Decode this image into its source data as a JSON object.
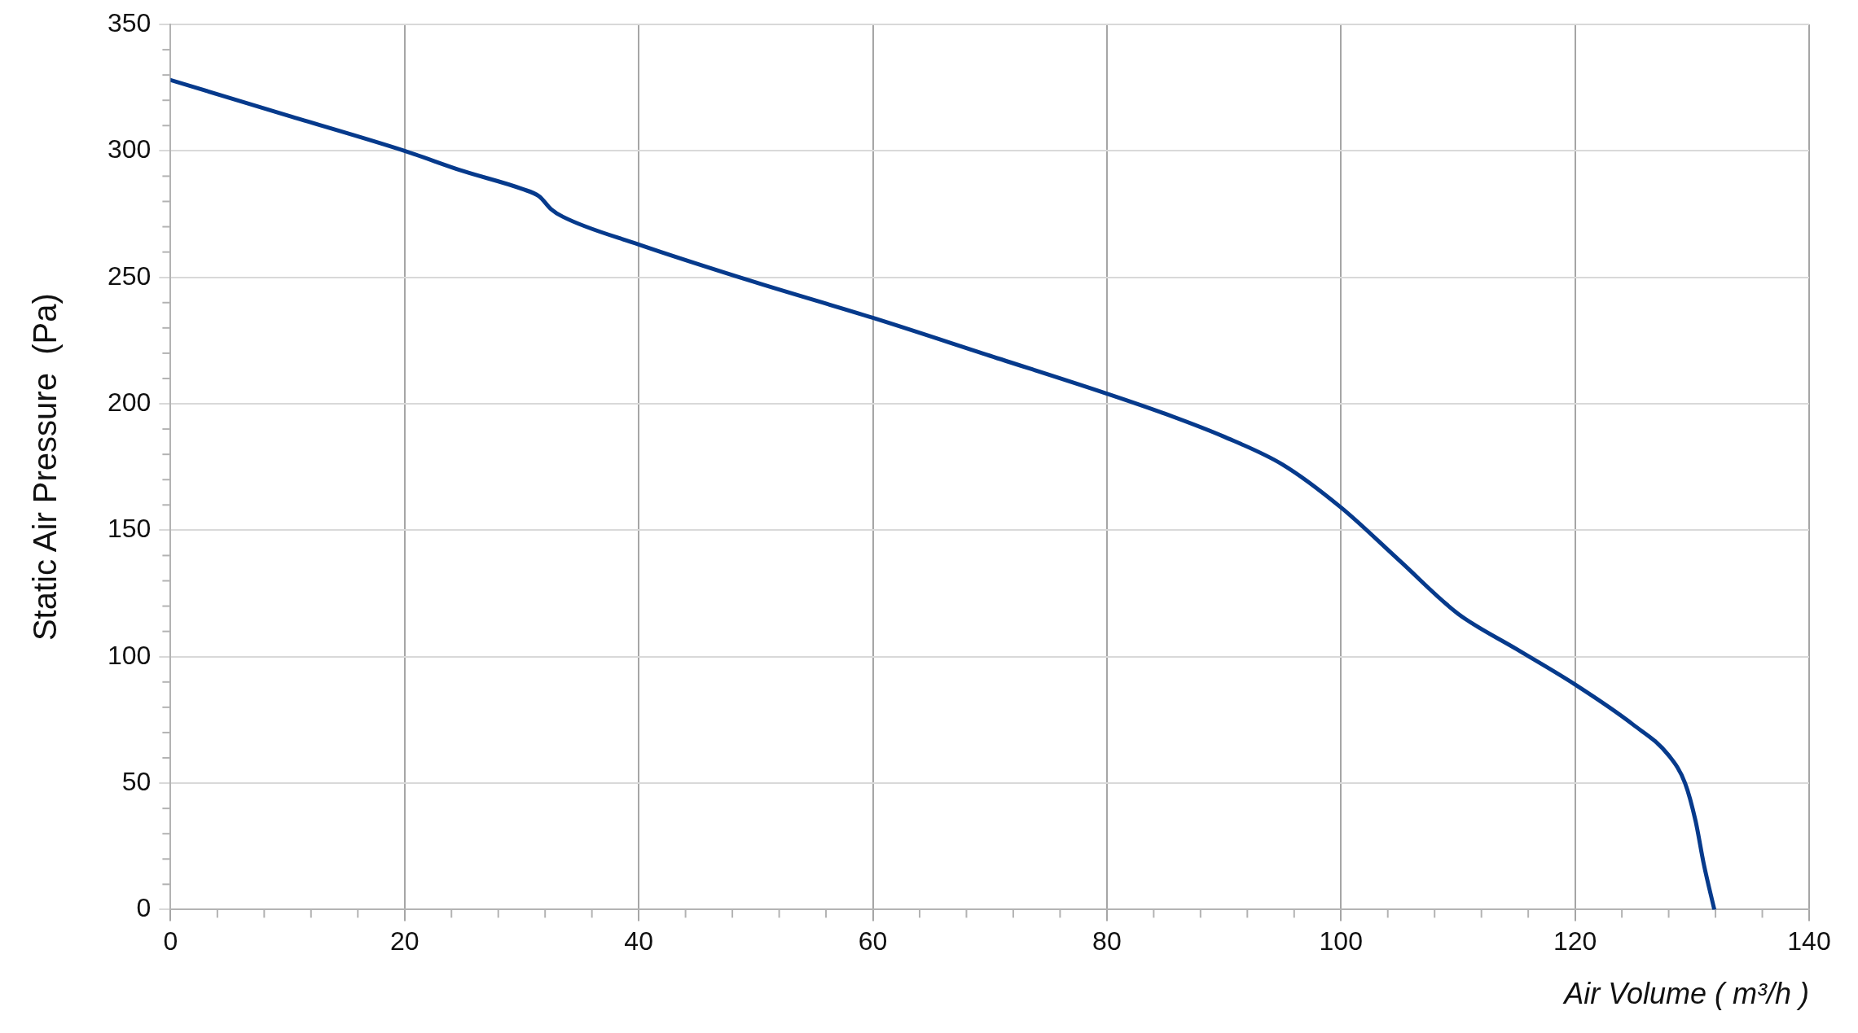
{
  "chart_data": {
    "type": "line",
    "xlabel": "Air Volume ( m³/h )",
    "ylabel": "Static Air Pressure  (Pa)",
    "series": [
      {
        "color": "#063a8c",
        "x": [
          0,
          10,
          20,
          25,
          30,
          31.5,
          32.5,
          33.5,
          40,
          50,
          60,
          70,
          80,
          85,
          90,
          95,
          100,
          105,
          110,
          115,
          120,
          125,
          128,
          129.4,
          130.3,
          131,
          131.9
        ],
        "values": [
          328,
          314,
          300,
          292,
          285,
          282,
          277,
          274,
          263,
          248,
          234,
          219,
          204,
          196,
          187,
          176,
          159,
          138,
          117,
          103,
          89,
          73,
          61,
          50,
          35,
          18,
          0
        ]
      }
    ],
    "xlim": [
      0,
      140
    ],
    "xticks": [
      0,
      20,
      40,
      60,
      80,
      100,
      120,
      140
    ],
    "ylim": [
      0,
      350
    ],
    "yticks": [
      0,
      50,
      100,
      150,
      200,
      250,
      300,
      350
    ],
    "grid": true,
    "legend": false,
    "marker": "none",
    "line_style": "solid"
  }
}
